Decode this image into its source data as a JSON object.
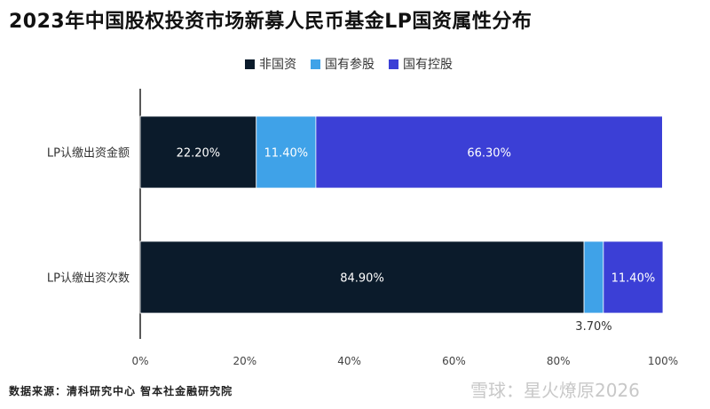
{
  "title": "2023年中国股权投资市场新募人民币基金LP国资属性分布",
  "source": "数据来源：清科研究中心 智本社金融研究院",
  "watermark": "雪球：星火燎原2026",
  "chart_data": {
    "type": "bar",
    "orientation": "horizontal",
    "stacked": true,
    "categories": [
      "LP认缴出资金额",
      "LP认缴出资次数"
    ],
    "series": [
      {
        "name": "非国资",
        "color": "#0b1b2b",
        "values": [
          22.2,
          84.9
        ],
        "labels": [
          "22.20%",
          "84.90%"
        ]
      },
      {
        "name": "国有参股",
        "color": "#3fa2e8",
        "values": [
          11.4,
          3.7
        ],
        "labels": [
          "11.40%",
          "3.70%"
        ]
      },
      {
        "name": "国有控股",
        "color": "#3b3fd6",
        "values": [
          66.3,
          11.4
        ],
        "labels": [
          "66.30%",
          "11.40%"
        ]
      }
    ],
    "xlim": [
      0,
      100
    ],
    "xticks": [
      "0%",
      "20%",
      "40%",
      "60%",
      "80%",
      "100%"
    ],
    "legend_position": "top"
  }
}
